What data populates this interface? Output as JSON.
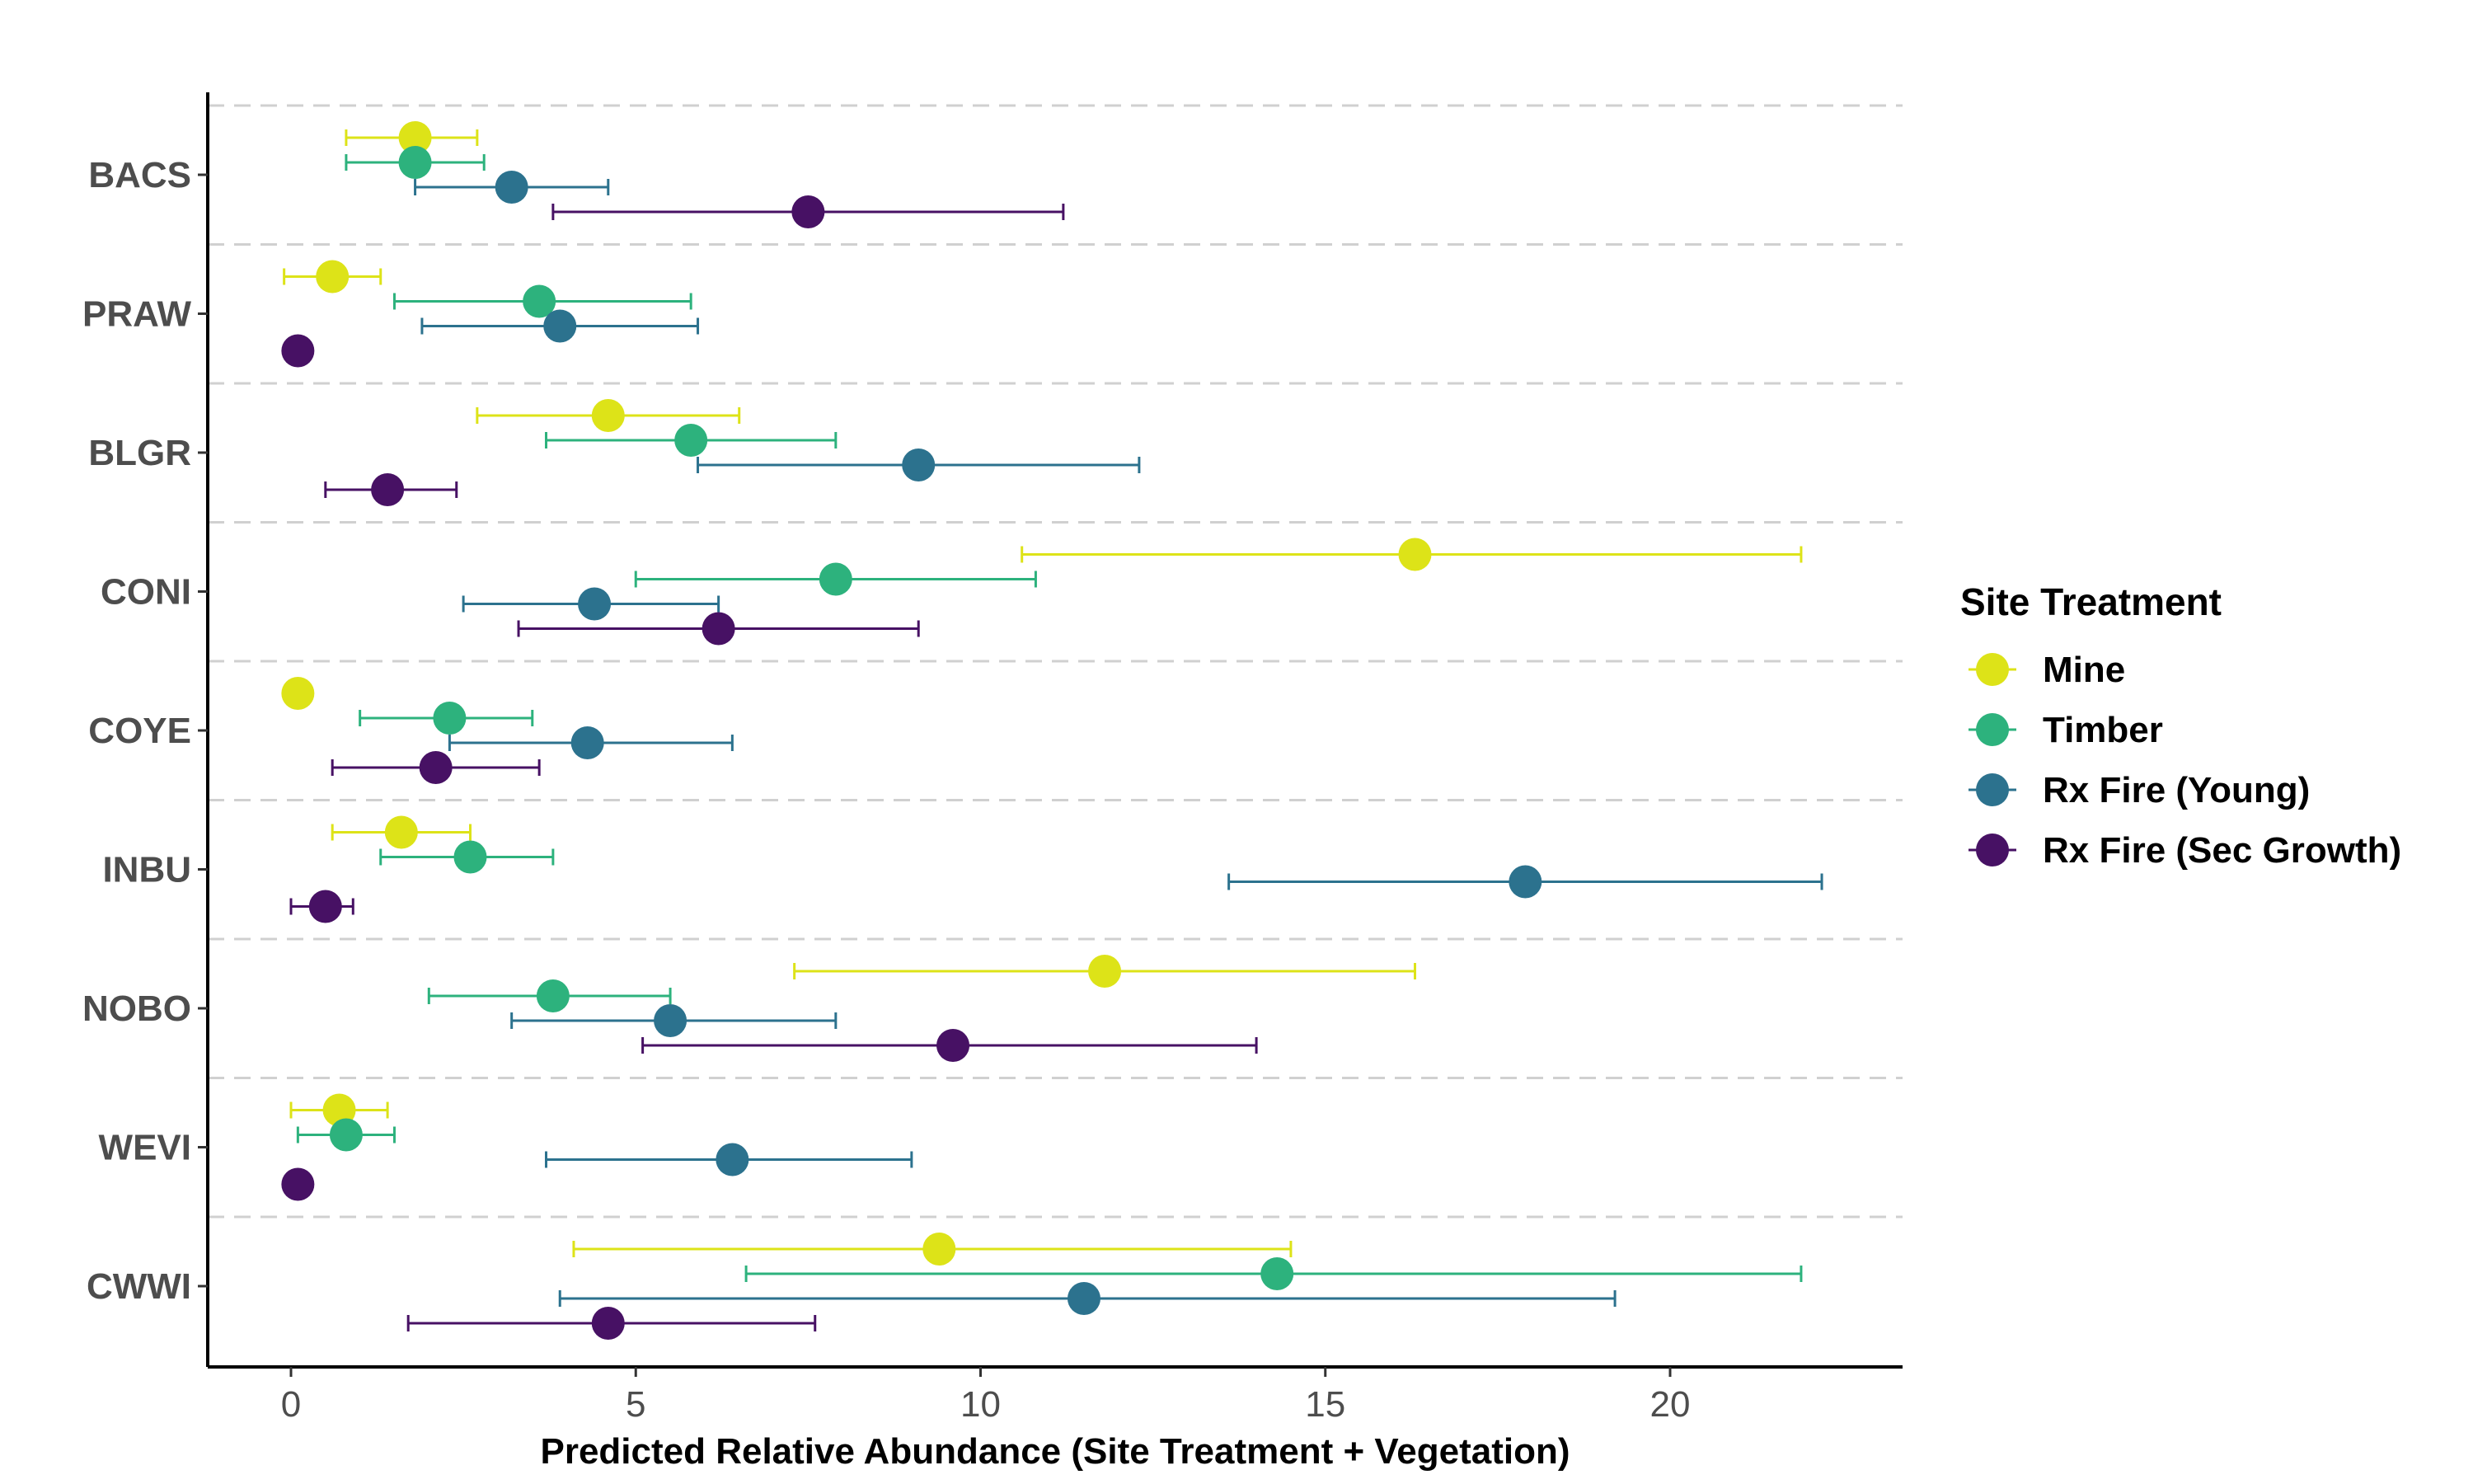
{
  "chart_data": {
    "type": "scatter",
    "subtype": "dot-and-whisker",
    "title": "",
    "xlabel": "Predicted Relative Abundance (Site Treatment + Vegetation)",
    "ylabel": "",
    "xlim": [
      -1.2,
      23.3
    ],
    "x_ticks": [
      0,
      5,
      10,
      15,
      20
    ],
    "grid": "dashed horizontal separators between species",
    "categories": [
      "BACS",
      "PRAW",
      "BLGR",
      "CONI",
      "COYE",
      "INBU",
      "NOBO",
      "WEVI",
      "CWWI"
    ],
    "legend": {
      "title": "Site Treatment",
      "position": "right"
    },
    "series": [
      {
        "name": "Mine",
        "color": "#dde318",
        "points": [
          {
            "category": "BACS",
            "x": 1.8,
            "lo": 0.8,
            "hi": 2.7
          },
          {
            "category": "PRAW",
            "x": 0.6,
            "lo": -0.1,
            "hi": 1.3
          },
          {
            "category": "BLGR",
            "x": 4.6,
            "lo": 2.7,
            "hi": 6.5
          },
          {
            "category": "CONI",
            "x": 16.3,
            "lo": 10.6,
            "hi": 21.9
          },
          {
            "category": "COYE",
            "x": 0.1,
            "lo": null,
            "hi": null
          },
          {
            "category": "INBU",
            "x": 1.6,
            "lo": 0.6,
            "hi": 2.6
          },
          {
            "category": "NOBO",
            "x": 11.8,
            "lo": 7.3,
            "hi": 16.3
          },
          {
            "category": "WEVI",
            "x": 0.7,
            "lo": 0.0,
            "hi": 1.4
          },
          {
            "category": "CWWI",
            "x": 9.4,
            "lo": 4.1,
            "hi": 14.5
          }
        ]
      },
      {
        "name": "Timber",
        "color": "#2db27d",
        "points": [
          {
            "category": "BACS",
            "x": 1.8,
            "lo": 0.8,
            "hi": 2.8
          },
          {
            "category": "PRAW",
            "x": 3.6,
            "lo": 1.5,
            "hi": 5.8
          },
          {
            "category": "BLGR",
            "x": 5.8,
            "lo": 3.7,
            "hi": 7.9
          },
          {
            "category": "CONI",
            "x": 7.9,
            "lo": 5.0,
            "hi": 10.8
          },
          {
            "category": "COYE",
            "x": 2.3,
            "lo": 1.0,
            "hi": 3.5
          },
          {
            "category": "INBU",
            "x": 2.6,
            "lo": 1.3,
            "hi": 3.8
          },
          {
            "category": "NOBO",
            "x": 3.8,
            "lo": 2.0,
            "hi": 5.5
          },
          {
            "category": "WEVI",
            "x": 0.8,
            "lo": 0.1,
            "hi": 1.5
          },
          {
            "category": "CWWI",
            "x": 14.3,
            "lo": 6.6,
            "hi": 21.9
          }
        ]
      },
      {
        "name": "Rx Fire (Young)",
        "color": "#2c728e",
        "points": [
          {
            "category": "BACS",
            "x": 3.2,
            "lo": 1.8,
            "hi": 4.6
          },
          {
            "category": "PRAW",
            "x": 3.9,
            "lo": 1.9,
            "hi": 5.9
          },
          {
            "category": "BLGR",
            "x": 9.1,
            "lo": 5.9,
            "hi": 12.3
          },
          {
            "category": "CONI",
            "x": 4.4,
            "lo": 2.5,
            "hi": 6.2
          },
          {
            "category": "COYE",
            "x": 4.3,
            "lo": 2.3,
            "hi": 6.4
          },
          {
            "category": "INBU",
            "x": 17.9,
            "lo": 13.6,
            "hi": 22.2
          },
          {
            "category": "NOBO",
            "x": 5.5,
            "lo": 3.2,
            "hi": 7.9
          },
          {
            "category": "WEVI",
            "x": 6.4,
            "lo": 3.7,
            "hi": 9.0
          },
          {
            "category": "CWWI",
            "x": 11.5,
            "lo": 3.9,
            "hi": 19.2
          }
        ]
      },
      {
        "name": "Rx Fire (Sec Growth)",
        "color": "#471164",
        "points": [
          {
            "category": "BACS",
            "x": 7.5,
            "lo": 3.8,
            "hi": 11.2
          },
          {
            "category": "PRAW",
            "x": 0.1,
            "lo": null,
            "hi": null
          },
          {
            "category": "BLGR",
            "x": 1.4,
            "lo": 0.5,
            "hi": 2.4
          },
          {
            "category": "CONI",
            "x": 6.2,
            "lo": 3.3,
            "hi": 9.1
          },
          {
            "category": "COYE",
            "x": 2.1,
            "lo": 0.6,
            "hi": 3.6
          },
          {
            "category": "INBU",
            "x": 0.5,
            "lo": 0.0,
            "hi": 0.9
          },
          {
            "category": "NOBO",
            "x": 9.6,
            "lo": 5.1,
            "hi": 14.0
          },
          {
            "category": "WEVI",
            "x": 0.1,
            "lo": null,
            "hi": null
          },
          {
            "category": "CWWI",
            "x": 4.6,
            "lo": 1.7,
            "hi": 7.6
          }
        ]
      }
    ]
  }
}
